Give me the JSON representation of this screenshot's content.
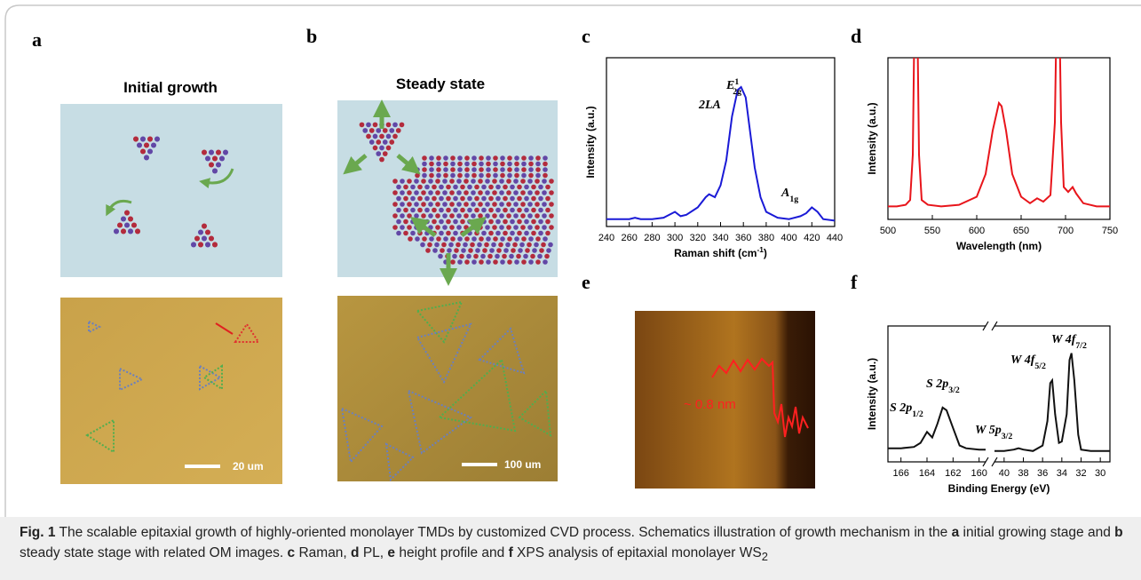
{
  "panels": {
    "a": {
      "label": "a",
      "title": "Initial growth",
      "scale_bar": "20 um"
    },
    "b": {
      "label": "b",
      "title": "Steady state",
      "scale_bar": "100 um"
    },
    "c": {
      "label": "c"
    },
    "d": {
      "label": "d"
    },
    "e": {
      "label": "e",
      "annotation": "~ 0.8 nm"
    },
    "f": {
      "label": "f"
    }
  },
  "chart_data": [
    {
      "type": "line",
      "xlabel": [
        {
          "text": "Raman shift (cm"
        },
        {
          "text": "-1",
          "style": "sup"
        },
        {
          "text": ")"
        }
      ],
      "ylabel": "Intensity (a.u.)",
      "xlim": [
        240,
        440
      ],
      "xticks": [
        240,
        260,
        280,
        300,
        320,
        340,
        360,
        380,
        400,
        420,
        440
      ],
      "ylim": [
        0,
        115
      ],
      "series": [
        {
          "color": "#1a1ad6",
          "x": [
            240,
            250,
            260,
            265,
            270,
            280,
            290,
            300,
            305,
            310,
            320,
            327,
            330,
            335,
            340,
            345,
            350,
            355,
            358,
            362,
            365,
            370,
            375,
            380,
            390,
            400,
            410,
            415,
            420,
            425,
            430,
            440
          ],
          "values": [
            5,
            5,
            5,
            6,
            5,
            5,
            6,
            10,
            7,
            8,
            13,
            20,
            22,
            20,
            28,
            45,
            75,
            93,
            95,
            88,
            70,
            40,
            20,
            10,
            6,
            5,
            7,
            9,
            13,
            10,
            5,
            4
          ]
        }
      ],
      "annotations": [
        [
          {
            "text": "2LA",
            "style": "italic"
          }
        ],
        [
          {
            "text": "E",
            "style": "italic"
          },
          {
            "text": "1",
            "style": "sup"
          },
          {
            "text": "2g",
            "style": "sub-under"
          }
        ],
        [
          {
            "text": "A",
            "style": "italic"
          },
          {
            "text": "1g",
            "style": "sub"
          }
        ]
      ]
    },
    {
      "type": "line",
      "xlabel": "Wavelength (nm)",
      "ylabel": "Intensity (a.u.)",
      "xlim": [
        500,
        750
      ],
      "xticks": [
        500,
        550,
        600,
        650,
        700,
        750
      ],
      "ylim": [
        0,
        100
      ],
      "series": [
        {
          "color": "#e8151b",
          "x": [
            500,
            510,
            520,
            525,
            528,
            530,
            533,
            535,
            538,
            545,
            560,
            580,
            600,
            610,
            618,
            625,
            628,
            633,
            640,
            650,
            660,
            668,
            675,
            683,
            688,
            690,
            693,
            695,
            698,
            703,
            708,
            712,
            720,
            735,
            750
          ],
          "values": [
            8,
            8,
            9,
            12,
            40,
            130,
            130,
            40,
            12,
            9,
            8,
            9,
            14,
            28,
            55,
            72,
            70,
            55,
            28,
            14,
            10,
            13,
            11,
            15,
            60,
            130,
            130,
            60,
            20,
            17,
            20,
            16,
            10,
            8,
            8
          ]
        }
      ],
      "annotations": []
    },
    {
      "type": "line",
      "xlabel": "Binding Energy (eV)",
      "ylabel": "Intensity (a.u.)",
      "xlim": [
        167,
        29
      ],
      "xbreak": [
        159.5,
        41
      ],
      "xticks": [
        166,
        164,
        162,
        160,
        40,
        38,
        36,
        34,
        32,
        30
      ],
      "ylim": [
        0,
        100
      ],
      "series": [
        {
          "color": "#111111",
          "x": [
            167,
            166,
            165,
            164.5,
            164,
            163.6,
            163.2,
            162.8,
            162.5,
            162,
            161.5,
            161,
            160,
            159.5
          ],
          "values": [
            10,
            10,
            11,
            14,
            22,
            18,
            28,
            40,
            38,
            25,
            12,
            10,
            9,
            9
          ]
        },
        {
          "color": "#111111",
          "x": [
            41,
            40,
            39,
            38.5,
            38,
            37,
            36,
            35.5,
            35.2,
            35,
            34.7,
            34.3,
            34,
            33.5,
            33.2,
            33,
            32.7,
            32.3,
            32,
            31,
            30,
            29
          ],
          "values": [
            8,
            8,
            9,
            10,
            9,
            8,
            12,
            30,
            58,
            60,
            35,
            14,
            15,
            35,
            75,
            80,
            60,
            20,
            9,
            8,
            8,
            8
          ]
        }
      ],
      "annotations": [
        [
          {
            "text": "S 2p",
            "style": "italic"
          },
          {
            "text": "1/2",
            "style": "sub"
          }
        ],
        [
          {
            "text": "S 2p",
            "style": "italic"
          },
          {
            "text": "3/2",
            "style": "sub"
          }
        ],
        [
          {
            "text": "W 5p",
            "style": "italic"
          },
          {
            "text": "3/2",
            "style": "sub"
          }
        ],
        [
          {
            "text": "W 4f",
            "style": "italic"
          },
          {
            "text": "5/2",
            "style": "sub"
          }
        ],
        [
          {
            "text": "W 4f",
            "style": "italic"
          },
          {
            "text": "7/2",
            "style": "sub"
          }
        ]
      ]
    }
  ],
  "caption": [
    {
      "text": "Fig. 1",
      "style": "bold"
    },
    {
      "text": "  The scalable epitaxial growth of highly-oriented monolayer TMDs by customized CVD process. Schematics illustration of growth mechanism in the "
    },
    {
      "text": "a",
      "style": "bold"
    },
    {
      "text": " initial growing stage and "
    },
    {
      "text": "b",
      "style": "bold"
    },
    {
      "text": " steady state stage with related OM images. "
    },
    {
      "text": "c",
      "style": "bold"
    },
    {
      "text": " Raman, "
    },
    {
      "text": "d",
      "style": "bold"
    },
    {
      "text": " PL, "
    },
    {
      "text": "e",
      "style": "bold"
    },
    {
      "text": " height profile and "
    },
    {
      "text": "f",
      "style": "bold"
    },
    {
      "text": " XPS analysis of epitaxial monolayer WS"
    },
    {
      "text": "2",
      "style": "sub"
    }
  ]
}
